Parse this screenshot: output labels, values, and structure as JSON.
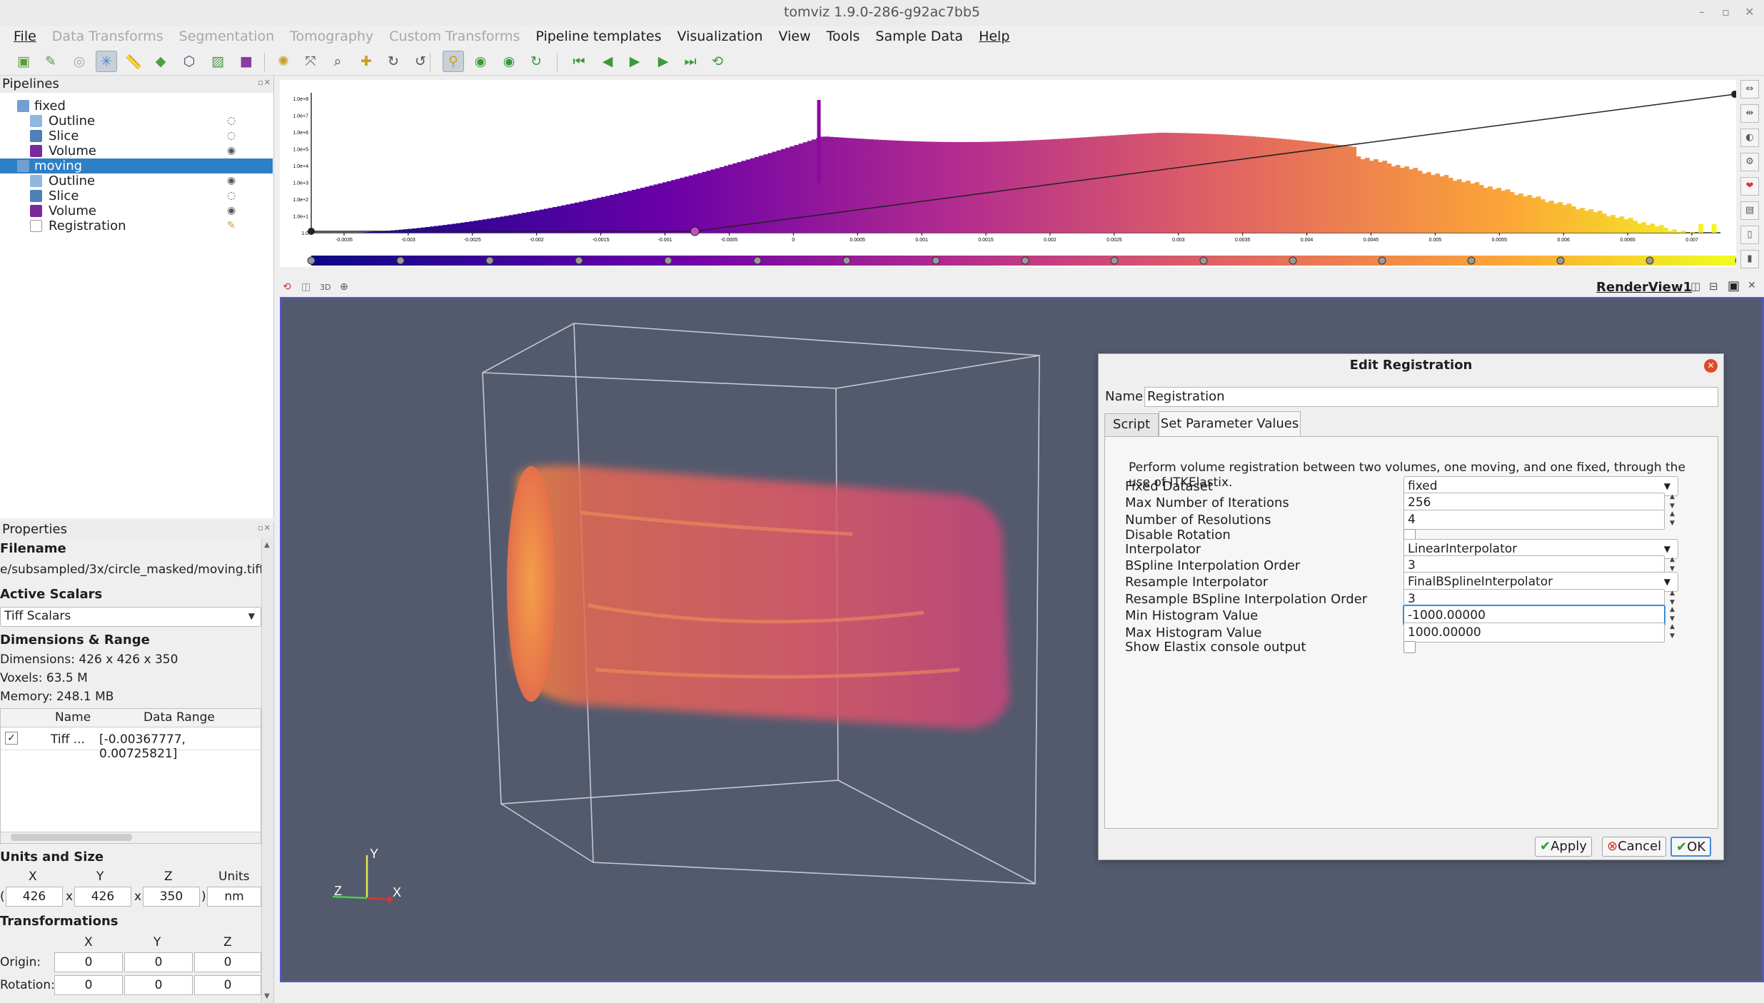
{
  "window": {
    "title": "tomviz 1.9.0-286-g92ac7bb5",
    "controls": [
      "–",
      "▫",
      "✕"
    ]
  },
  "menu": [
    {
      "label": "File",
      "enabled": true
    },
    {
      "label": "Data Transforms",
      "enabled": false
    },
    {
      "label": "Segmentation",
      "enabled": false
    },
    {
      "label": "Tomography",
      "enabled": false
    },
    {
      "label": "Custom Transforms",
      "enabled": false
    },
    {
      "label": "Pipeline templates",
      "enabled": true
    },
    {
      "label": "Visualization",
      "enabled": true
    },
    {
      "label": "View",
      "enabled": true
    },
    {
      "label": "Tools",
      "enabled": true
    },
    {
      "label": "Sample Data",
      "enabled": true
    },
    {
      "label": "Help",
      "enabled": true
    }
  ],
  "toolbar_icons": [
    "open-data-icon",
    "open-recent-icon",
    "reset-icon",
    "axes-icon",
    "ruler-icon",
    "measure-icon",
    "cube-icon",
    "cube-slice-icon",
    "purple-cube-icon",
    "magic-wand-icon",
    "reset-camera-icon",
    "zoom-to-box-icon",
    "rotate-x-icon",
    "rotate-plus90-icon",
    "rotate-minus90-icon",
    "interact-icon",
    "refresh-icon",
    "refresh-2-icon",
    "refresh-3-icon",
    "first-frame-icon",
    "prev-frame-icon",
    "play-icon",
    "next-frame-icon",
    "last-frame-icon",
    "loop-icon"
  ],
  "pipelines": {
    "title": "Pipelines",
    "items": [
      {
        "label": "fixed",
        "level": 0,
        "icon": "dataset-icon",
        "selected": false,
        "vis": ""
      },
      {
        "label": "Outline",
        "level": 1,
        "icon": "outline-icon",
        "selected": false,
        "vis": "hidden"
      },
      {
        "label": "Slice",
        "level": 1,
        "icon": "slice-icon",
        "selected": false,
        "vis": "hidden"
      },
      {
        "label": "Volume",
        "level": 1,
        "icon": "volume-icon",
        "selected": false,
        "vis": "visible"
      },
      {
        "label": "moving",
        "level": 0,
        "icon": "dataset-icon",
        "selected": true,
        "vis": ""
      },
      {
        "label": "Outline",
        "level": 1,
        "icon": "outline-icon",
        "selected": false,
        "vis": "visible"
      },
      {
        "label": "Slice",
        "level": 1,
        "icon": "slice-icon",
        "selected": false,
        "vis": "hidden"
      },
      {
        "label": "Volume",
        "level": 1,
        "icon": "volume-icon",
        "selected": false,
        "vis": "visible"
      },
      {
        "label": "Registration",
        "level": 1,
        "icon": "operator-icon",
        "selected": false,
        "vis": "edit"
      }
    ]
  },
  "properties": {
    "title": "Properties",
    "filename_header": "Filename",
    "filename": "e/subsampled/3x/circle_masked/moving.tiff",
    "active_scalars_header": "Active Scalars",
    "active_scalars": "Tiff Scalars",
    "dimensions_header": "Dimensions & Range",
    "dimensions": "Dimensions: 426 x 426 x 350",
    "voxels": "Voxels: 63.5 M",
    "memory": "Memory: 248.1 MB",
    "table": {
      "headers": [
        "Name",
        "Data Range"
      ],
      "rows": [
        {
          "checked": true,
          "name": "Tiff ...",
          "range": "[-0.00367777, 0.00725821]"
        }
      ]
    },
    "units_header": "Units and Size",
    "units_cols": [
      "X",
      "Y",
      "Z",
      "Units"
    ],
    "units_values": {
      "x": "426",
      "y": "426",
      "z": "350",
      "units": "nm"
    },
    "units_seps": [
      "(",
      "x",
      "x",
      ")"
    ],
    "transform_header": "Transformations",
    "transform_cols": [
      "X",
      "Y",
      "Z"
    ],
    "origin_label": "Origin:",
    "origin": [
      "0",
      "0",
      "0"
    ],
    "rotation_label": "Rotation:",
    "rotation": [
      "0",
      "0",
      "0"
    ]
  },
  "histogram": {
    "tick_labels": [
      "-0.0035",
      "-0.003",
      "-0.0025",
      "-0.002",
      "-0.0015",
      "-0.001",
      "-0.0005",
      "0",
      "0.0005",
      "0.001",
      "0.0015",
      "0.002",
      "0.0025",
      "0.003",
      "0.0035",
      "0.004",
      "0.0045",
      "0.005",
      "0.0055",
      "0.006",
      "0.0065",
      "0.007"
    ],
    "y_labels": [
      "1.0e+8",
      "1.0e+7",
      "1.0e+6",
      "1.0e+5",
      "1.0e+4",
      "1.0e+3",
      "1.0e+2",
      "1.0e+1",
      "1.0"
    ],
    "colormap": "plasma",
    "log_scale": true
  },
  "view": {
    "title": "RenderView1",
    "mini_buttons": [
      "3D"
    ]
  },
  "axes": {
    "y": "Y",
    "z": "Z",
    "x": "X"
  },
  "dialog": {
    "title": "Edit Registration",
    "name_label": "Name",
    "name_value": "Registration",
    "tabs": [
      {
        "label": "Script",
        "active": false
      },
      {
        "label": "Set Parameter Values",
        "active": true
      }
    ],
    "description": "Perform volume registration between two volumes, one moving, and one fixed, through the use of ITKElastix.",
    "params": [
      {
        "label": "Fixed Dataset",
        "type": "combo",
        "value": "fixed"
      },
      {
        "label": "Max Number of Iterations",
        "type": "spin",
        "value": "256"
      },
      {
        "label": "Number of Resolutions",
        "type": "spin",
        "value": "4"
      },
      {
        "label": "Disable Rotation",
        "type": "check",
        "value": ""
      },
      {
        "label": "Interpolator",
        "type": "combo",
        "value": "LinearInterpolator"
      },
      {
        "label": "BSpline Interpolation Order",
        "type": "spin",
        "value": "3"
      },
      {
        "label": "Resample Interpolator",
        "type": "combo",
        "value": "FinalBSplineInterpolator"
      },
      {
        "label": "Resample BSpline Interpolation Order",
        "type": "spin",
        "value": "3"
      },
      {
        "label": "Min Histogram Value",
        "type": "spin",
        "value": "-1000.00000"
      },
      {
        "label": "Max Histogram Value",
        "type": "spin",
        "value": "1000.00000"
      },
      {
        "label": "Show Elastix console output",
        "type": "check",
        "value": ""
      }
    ],
    "buttons": {
      "apply": "Apply",
      "cancel": "Cancel",
      "ok": "OK"
    },
    "colors": {
      "close": "#e0492a",
      "apply": "#2a9d2a",
      "cancel": "#d03020",
      "ok": "#2a9d2a",
      "focus": "#3d8bd8"
    }
  }
}
